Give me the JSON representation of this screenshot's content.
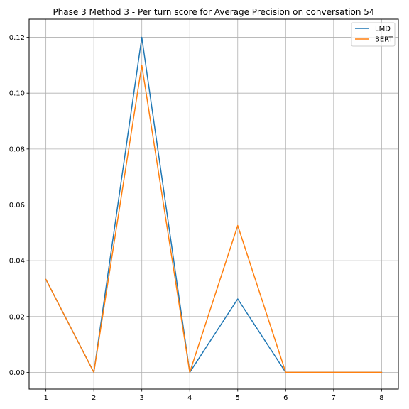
{
  "chart_data": {
    "type": "line",
    "title": "Phase 3 Method 3 - Per turn score for Average Precision on conversation 54",
    "xlabel": "",
    "ylabel": "",
    "x": [
      1,
      2,
      3,
      4,
      5,
      6,
      7,
      8
    ],
    "xlim": [
      0.65,
      8.35
    ],
    "ylim": [
      -0.006,
      0.1265
    ],
    "xticks": [
      1,
      2,
      3,
      4,
      5,
      6,
      7,
      8
    ],
    "yticks": [
      0.0,
      0.02,
      0.04,
      0.06,
      0.08,
      0.1,
      0.12
    ],
    "ytick_labels": [
      "0.00",
      "0.02",
      "0.04",
      "0.06",
      "0.08",
      "0.10",
      "0.12"
    ],
    "grid": true,
    "legend_position": "top-right",
    "series": [
      {
        "name": "LMD",
        "color": "#1f77b4",
        "values": [
          0.0333,
          0.0,
          0.12,
          0.0,
          0.0263,
          0.0,
          0.0,
          0.0
        ]
      },
      {
        "name": "BERT",
        "color": "#ff7f0e",
        "values": [
          0.0333,
          0.0,
          0.11,
          0.0,
          0.0526,
          0.0,
          0.0,
          0.0
        ]
      }
    ]
  }
}
